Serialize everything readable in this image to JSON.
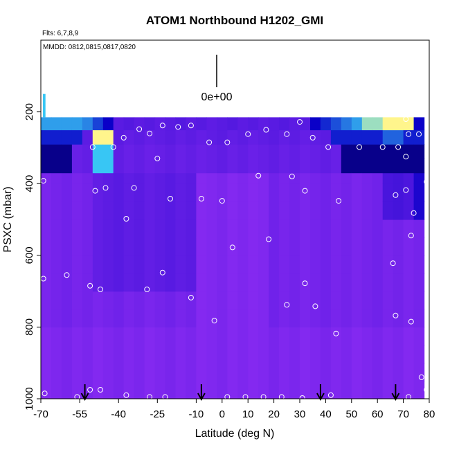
{
  "chart_data": {
    "type": "heatmap",
    "title": "ATOM1 Northbound H1202_GMI",
    "subtitle_flights": "Flts: 6,7,8,9",
    "subtitle_dates": "MMDD: 0812,0815,0817,0820",
    "xlabel": "Latitude (deg N)",
    "ylabel": "PSXC (mbar)",
    "xlim": [
      -70,
      80
    ],
    "ylim": [
      1000,
      0
    ],
    "x_ticks": [
      -70,
      -55,
      -40,
      -25,
      -10,
      0,
      10,
      20,
      30,
      40,
      50,
      60,
      70,
      80
    ],
    "y_ticks": [
      200,
      400,
      600,
      800,
      1000
    ],
    "legend_value_label": "0e+00",
    "column_lats": [
      -68,
      -64,
      -60,
      -56,
      -52,
      -48,
      -44,
      -40,
      -36,
      -32,
      -28,
      -24,
      -20,
      -16,
      -12,
      -8,
      -4,
      0,
      4,
      8,
      12,
      16,
      20,
      24,
      28,
      32,
      36,
      40,
      44,
      48,
      52,
      56,
      60,
      64,
      68,
      72,
      76
    ],
    "level_bounds": [
      1000,
      950,
      900,
      850,
      800,
      750,
      700,
      650,
      600,
      550,
      500,
      450,
      400,
      370,
      330,
      290,
      250,
      215
    ],
    "sample_points": [
      {
        "lat": -68.5,
        "p": 985
      },
      {
        "lat": -56,
        "p": 995
      },
      {
        "lat": -51,
        "p": 975
      },
      {
        "lat": -47,
        "p": 975
      },
      {
        "lat": -37,
        "p": 990
      },
      {
        "lat": -28,
        "p": 995
      },
      {
        "lat": -22,
        "p": 995
      },
      {
        "lat": 2,
        "p": 995
      },
      {
        "lat": 9,
        "p": 995
      },
      {
        "lat": 16,
        "p": 995
      },
      {
        "lat": 23,
        "p": 995
      },
      {
        "lat": 31,
        "p": 998
      },
      {
        "lat": 42,
        "p": 990
      },
      {
        "lat": 72,
        "p": 995
      },
      {
        "lat": 77,
        "p": 940
      },
      {
        "lat": 79,
        "p": 975
      },
      {
        "lat": -69,
        "p": 665
      },
      {
        "lat": -60,
        "p": 655
      },
      {
        "lat": -51,
        "p": 685
      },
      {
        "lat": -47,
        "p": 695
      },
      {
        "lat": -29,
        "p": 695
      },
      {
        "lat": -23,
        "p": 648
      },
      {
        "lat": -12,
        "p": 718
      },
      {
        "lat": -3,
        "p": 782
      },
      {
        "lat": 25,
        "p": 738
      },
      {
        "lat": 32,
        "p": 678
      },
      {
        "lat": 36,
        "p": 742
      },
      {
        "lat": 44,
        "p": 818
      },
      {
        "lat": 67,
        "p": 768
      },
      {
        "lat": 73,
        "p": 785
      },
      {
        "lat": 66,
        "p": 622
      },
      {
        "lat": 73,
        "p": 545
      },
      {
        "lat": 4,
        "p": 578
      },
      {
        "lat": 18,
        "p": 555
      },
      {
        "lat": -37,
        "p": 498
      },
      {
        "lat": 74,
        "p": 482
      },
      {
        "lat": -69,
        "p": 392
      },
      {
        "lat": -49,
        "p": 420
      },
      {
        "lat": -45,
        "p": 412
      },
      {
        "lat": -34,
        "p": 412
      },
      {
        "lat": -20,
        "p": 442
      },
      {
        "lat": -8,
        "p": 442
      },
      {
        "lat": 0,
        "p": 448
      },
      {
        "lat": 14,
        "p": 378
      },
      {
        "lat": 27,
        "p": 380
      },
      {
        "lat": 32,
        "p": 420
      },
      {
        "lat": 45,
        "p": 448
      },
      {
        "lat": 67,
        "p": 432
      },
      {
        "lat": 71,
        "p": 418
      },
      {
        "lat": 79,
        "p": 395
      },
      {
        "lat": -50,
        "p": 298
      },
      {
        "lat": -42,
        "p": 298
      },
      {
        "lat": -38,
        "p": 272
      },
      {
        "lat": -32,
        "p": 248
      },
      {
        "lat": -28,
        "p": 260
      },
      {
        "lat": -23,
        "p": 238
      },
      {
        "lat": -17,
        "p": 242
      },
      {
        "lat": -12,
        "p": 238
      },
      {
        "lat": -5,
        "p": 285
      },
      {
        "lat": 2,
        "p": 285
      },
      {
        "lat": 10,
        "p": 262
      },
      {
        "lat": 17,
        "p": 250
      },
      {
        "lat": 25,
        "p": 262
      },
      {
        "lat": 30,
        "p": 228
      },
      {
        "lat": 35,
        "p": 272
      },
      {
        "lat": 41,
        "p": 298
      },
      {
        "lat": 53,
        "p": 298
      },
      {
        "lat": 62,
        "p": 298
      },
      {
        "lat": 68,
        "p": 298
      },
      {
        "lat": 72,
        "p": 262
      },
      {
        "lat": 76,
        "p": 262
      },
      {
        "lat": 71,
        "p": 325
      },
      {
        "lat": -25,
        "p": 330
      },
      {
        "lat": 71,
        "p": 220
      }
    ],
    "flight_markers_lat": [
      -53,
      -8,
      38,
      67
    ],
    "colors": {
      "background_purple": "#8429f0",
      "bright_blue": "#38c6f4",
      "dark_blue": "#0a00c8",
      "yellow": "#fff58c",
      "marker": "#ffffff"
    }
  }
}
